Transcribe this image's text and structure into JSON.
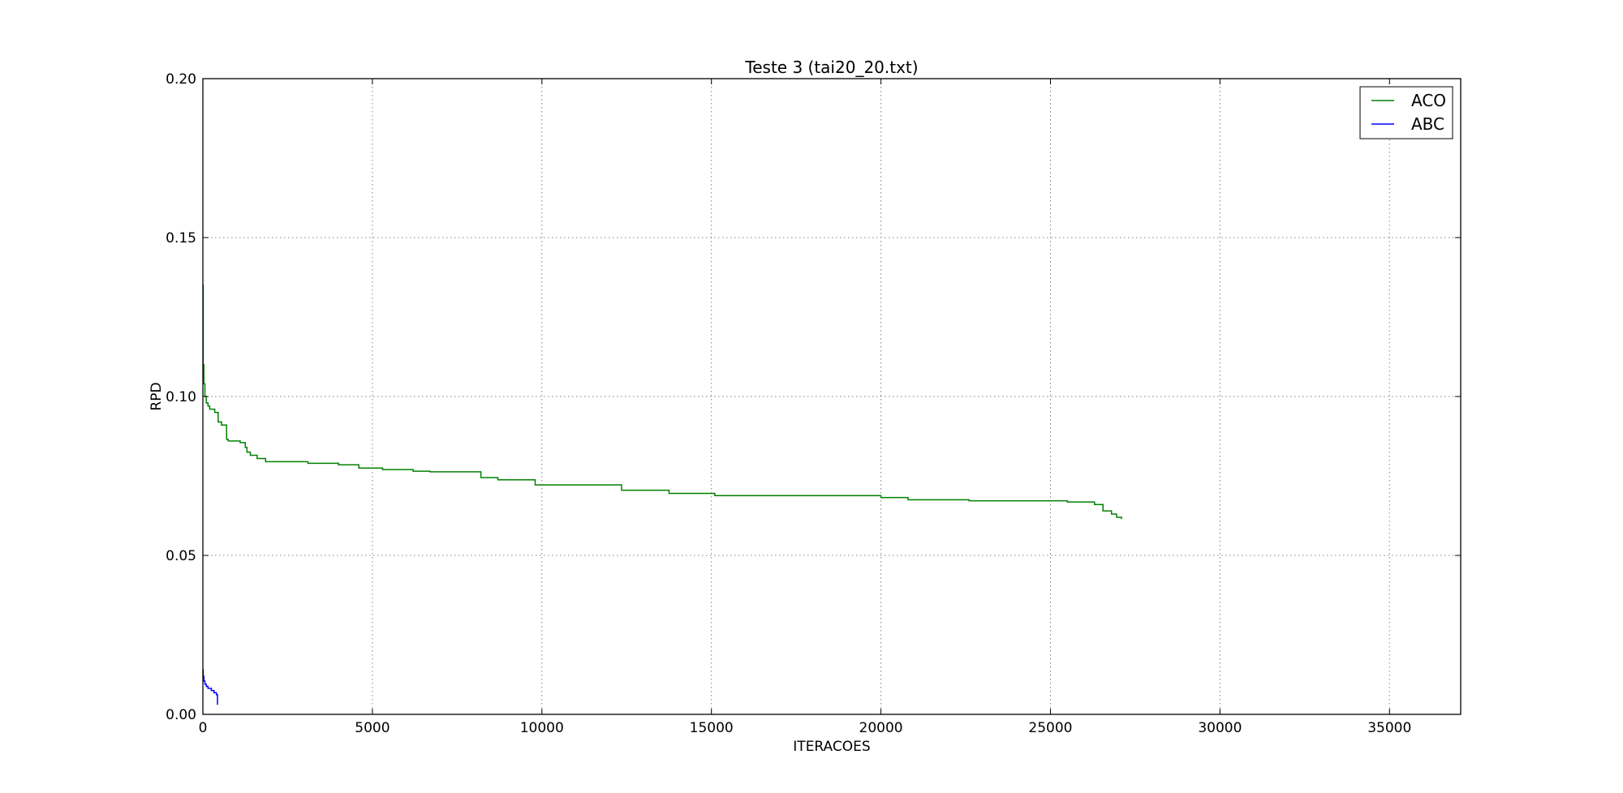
{
  "chart_data": {
    "type": "line",
    "title": "Teste 3 (tai20_20.txt)",
    "xlabel": "ITERACOES",
    "ylabel": "RPD",
    "xlim": [
      0,
      37100
    ],
    "ylim": [
      0,
      0.2
    ],
    "xticks": [
      0,
      5000,
      10000,
      15000,
      20000,
      25000,
      30000,
      35000
    ],
    "xtick_labels": [
      "0",
      "5000",
      "10000",
      "15000",
      "20000",
      "25000",
      "30000",
      "35000"
    ],
    "yticks": [
      0,
      0.05,
      0.1,
      0.15,
      0.2
    ],
    "ytick_labels": [
      "0.00",
      "0.05",
      "0.10",
      "0.15",
      "0.20"
    ],
    "grid": true,
    "legend_position": "top-right",
    "series": [
      {
        "name": "ACO",
        "color": "#008000",
        "step": true,
        "x": [
          0,
          10,
          30,
          60,
          100,
          150,
          200,
          350,
          450,
          550,
          700,
          750,
          1100,
          1250,
          1300,
          1400,
          1600,
          1850,
          3100,
          4000,
          4600,
          5300,
          6200,
          6700,
          8200,
          8700,
          9800,
          12350,
          13750,
          15100,
          20000,
          20800,
          22600,
          25500,
          26300,
          26550,
          26800,
          26950,
          27100
        ],
        "y": [
          0.135,
          0.11,
          0.104,
          0.1,
          0.098,
          0.097,
          0.096,
          0.095,
          0.092,
          0.091,
          0.0865,
          0.086,
          0.0855,
          0.084,
          0.0825,
          0.0815,
          0.0805,
          0.0795,
          0.079,
          0.0785,
          0.0775,
          0.077,
          0.0765,
          0.0763,
          0.0745,
          0.0738,
          0.0722,
          0.0705,
          0.0695,
          0.0688,
          0.0682,
          0.0675,
          0.0672,
          0.0668,
          0.066,
          0.064,
          0.063,
          0.062,
          0.0615
        ]
      },
      {
        "name": "ABC",
        "color": "#0000ff",
        "step": true,
        "x": [
          0,
          10,
          30,
          60,
          100,
          150,
          250,
          330,
          400,
          430
        ],
        "y": [
          0.014,
          0.012,
          0.0105,
          0.0095,
          0.0088,
          0.0082,
          0.0075,
          0.0068,
          0.0062,
          0.003
        ]
      }
    ]
  }
}
